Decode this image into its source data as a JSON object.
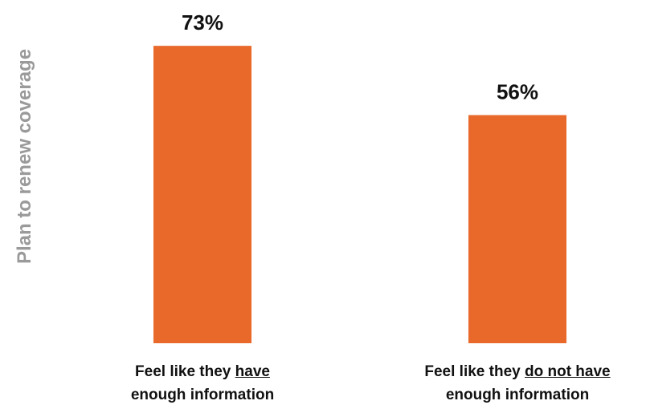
{
  "chart_data": {
    "type": "bar",
    "title": "",
    "xlabel": "",
    "ylabel": "Plan to renew coverage",
    "ylim": [
      0,
      100
    ],
    "grid": false,
    "categories": [
      {
        "pre": "Feel like they ",
        "underlined": "have",
        "post": "",
        "line2": "enough information"
      },
      {
        "pre": "Feel like they ",
        "underlined": "do not have",
        "post": "",
        "line2": "enough information"
      }
    ],
    "values": [
      73,
      56
    ],
    "value_labels": [
      "73%",
      "56%"
    ],
    "bar_color": "#E8692A"
  }
}
